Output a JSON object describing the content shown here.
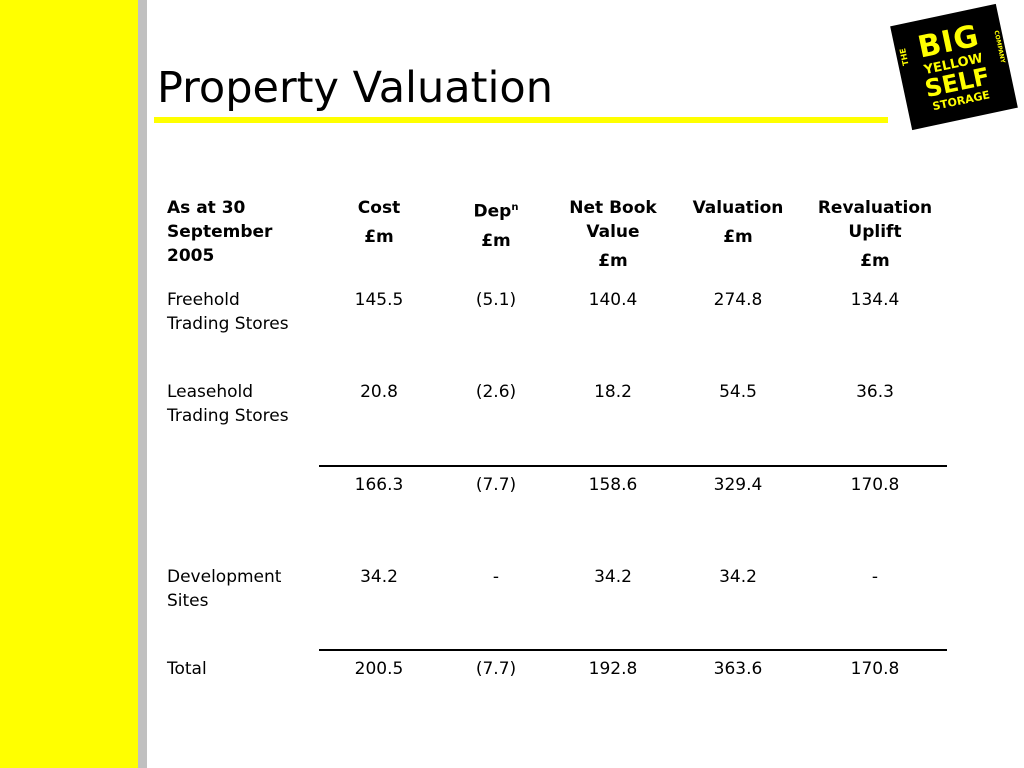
{
  "slide": {
    "title": "Property Valuation"
  },
  "logo": {
    "the": "THE",
    "big": "BIG",
    "yellow": "YELLOW",
    "self": "SELF",
    "storage": "STORAGE",
    "company": "COMPANY"
  },
  "table": {
    "headers": {
      "label": [
        "As at 30",
        "September",
        "2005"
      ],
      "cost": [
        "Cost",
        "£m"
      ],
      "dep": [
        "Dep",
        "n",
        "£m"
      ],
      "nbv": [
        "Net Book",
        "Value",
        "£m"
      ],
      "valuation": [
        "Valuation",
        "£m"
      ],
      "uplift": [
        "Revaluation",
        "Uplift",
        "£m"
      ]
    },
    "rows": [
      {
        "label": [
          "Freehold",
          "Trading Stores"
        ],
        "cost": "145.5",
        "dep": "(5.1)",
        "nbv": "140.4",
        "valuation": "274.8",
        "uplift": "134.4"
      },
      {
        "label": [
          "Leasehold",
          "Trading Stores"
        ],
        "cost": "20.8",
        "dep": "(2.6)",
        "nbv": "18.2",
        "valuation": "54.5",
        "uplift": "36.3"
      },
      {
        "label": [
          "",
          ""
        ],
        "cost": "166.3",
        "dep": "(7.7)",
        "nbv": "158.6",
        "valuation": "329.4",
        "uplift": "170.8"
      },
      {
        "label": [
          "Development",
          "Sites"
        ],
        "cost": "34.2",
        "dep": "-",
        "nbv": "34.2",
        "valuation": "34.2",
        "uplift": "-"
      },
      {
        "label": [
          "Total",
          ""
        ],
        "cost": "200.5",
        "dep": "(7.7)",
        "nbv": "192.8",
        "valuation": "363.6",
        "uplift": "170.8"
      }
    ]
  },
  "colors": {
    "accent_yellow": "#ffff00",
    "side_grey": "#c0c0c0",
    "text": "#000000"
  }
}
